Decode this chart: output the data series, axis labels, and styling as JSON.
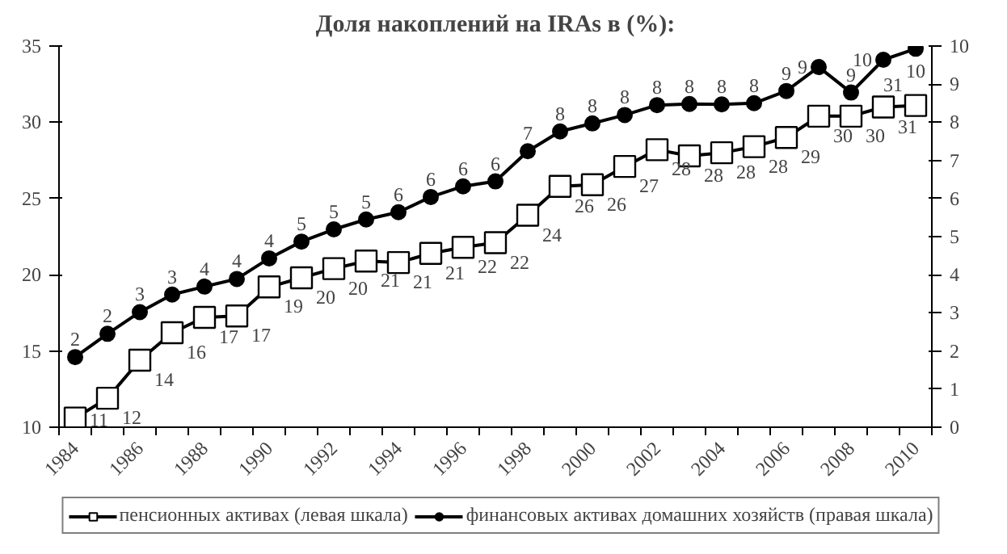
{
  "chart_data": {
    "type": "line",
    "title": "Доля накоплений на IRAs в (%):",
    "categories": [
      "1984",
      null,
      "1986",
      null,
      "1988",
      null,
      "1990",
      null,
      "1992",
      null,
      "1994",
      null,
      "1996",
      null,
      "1998",
      null,
      "2000",
      null,
      "2002",
      null,
      "2004",
      null,
      "2006",
      null,
      "2008",
      null,
      "2010"
    ],
    "series": [
      {
        "name": "пенсионных активах (левая шкала)",
        "color": "#000000",
        "marker": "square",
        "values": [
          10.6,
          11.9,
          14.4,
          16.2,
          17.2,
          17.3,
          19.2,
          19.8,
          20.4,
          20.9,
          20.8,
          21.4,
          21.8,
          22.1,
          23.9,
          25.8,
          25.9,
          27.1,
          28.2,
          27.8,
          28.0,
          28.4,
          29.0,
          30.4,
          30.4,
          31.0,
          31.1
        ],
        "value_labels": [
          "11",
          "12",
          "14",
          "16",
          "17",
          "17",
          "19",
          "20",
          "20",
          "21",
          "21",
          "21",
          "22",
          "22",
          "24",
          "26",
          "26",
          "27",
          "28",
          "28",
          "28",
          "28",
          "29",
          "30",
          "30",
          "31",
          "31"
        ]
      },
      {
        "name": "финансовых активах домашних хозяйств (правая шкала)",
        "color": "#000000",
        "marker": "circle",
        "axis": "y2",
        "values": [
          1.84,
          2.45,
          3.02,
          3.48,
          3.69,
          3.89,
          4.43,
          4.87,
          5.19,
          5.45,
          5.64,
          6.04,
          6.32,
          6.45,
          7.24,
          7.76,
          7.97,
          8.19,
          8.45,
          8.48,
          8.47,
          8.5,
          8.82,
          9.45,
          8.78,
          9.64,
          9.93
        ],
        "value_labels": [
          "2",
          "2",
          "3",
          "3",
          "4",
          "4",
          "4",
          "5",
          "5",
          "5",
          "6",
          "6",
          "6",
          "6",
          "7",
          "8",
          "8",
          "8",
          "8",
          "8",
          "8",
          "8",
          "9",
          "9",
          "9",
          "10",
          "10"
        ]
      }
    ],
    "ylim": [
      10,
      35
    ],
    "yticks": [
      10,
      15,
      20,
      25,
      30,
      35
    ],
    "y2lim": [
      0,
      10
    ],
    "y2ticks": [
      0,
      1,
      2,
      3,
      4,
      5,
      6,
      7,
      8,
      9,
      10
    ],
    "grid": false,
    "legend": "bottom"
  }
}
